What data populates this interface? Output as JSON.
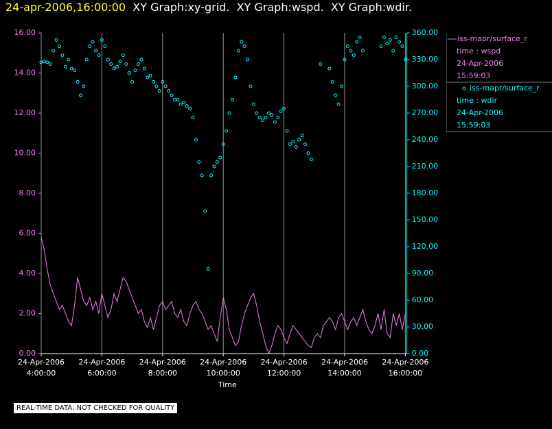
{
  "header": {
    "timestamp": "24-apr-2006,16:00:00",
    "title": "XY Graph:xy-grid.  XY Graph:wspd.  XY Graph:wdir."
  },
  "chart_data": {
    "type": "line",
    "xlabel": "Time",
    "grid": "x",
    "x": [
      4,
      4.1,
      4.2,
      4.3,
      4.4,
      4.5,
      4.6,
      4.7,
      4.8,
      4.9,
      5,
      5.1,
      5.2,
      5.3,
      5.4,
      5.5,
      5.6,
      5.7,
      5.8,
      5.9,
      6,
      6.1,
      6.2,
      6.3,
      6.4,
      6.5,
      6.6,
      6.7,
      6.8,
      6.9,
      7,
      7.1,
      7.2,
      7.3,
      7.4,
      7.5,
      7.6,
      7.7,
      7.8,
      7.9,
      8,
      8.1,
      8.2,
      8.3,
      8.4,
      8.5,
      8.6,
      8.7,
      8.8,
      8.9,
      9,
      9.1,
      9.2,
      9.3,
      9.4,
      9.5,
      9.6,
      9.7,
      9.8,
      9.9,
      10,
      10.1,
      10.2,
      10.3,
      10.4,
      10.5,
      10.6,
      10.7,
      10.8,
      10.9,
      11,
      11.1,
      11.2,
      11.3,
      11.4,
      11.5,
      11.6,
      11.7,
      11.8,
      11.9,
      12,
      12.1,
      12.2,
      12.3,
      12.4,
      12.5,
      12.6,
      12.7,
      12.8,
      12.9,
      13,
      13.1,
      13.2,
      13.3,
      13.4,
      13.5,
      13.6,
      13.7,
      13.8,
      13.9,
      14,
      14.1,
      14.2,
      14.3,
      14.4,
      14.5,
      14.6,
      14.7,
      14.8,
      14.9,
      15,
      15.1,
      15.2,
      15.3,
      15.4,
      15.5,
      15.6,
      15.7,
      15.8,
      15.9,
      16
    ],
    "xlim": [
      4,
      16.05
    ],
    "xticks": [
      {
        "value": 4,
        "label": "24-Apr-2006\n4:00:00"
      },
      {
        "value": 6,
        "label": "24-Apr-2006\n6:00:00"
      },
      {
        "value": 8,
        "label": "24-Apr-2006\n8:00:00"
      },
      {
        "value": 10,
        "label": "24-Apr-2006\n10:00:00"
      },
      {
        "value": 12,
        "label": "24-Apr-2006\n12:00:00"
      },
      {
        "value": 14,
        "label": "24-Apr-2006\n14:00:00"
      },
      {
        "value": 16,
        "label": "24-Apr-2006\n16:00:00"
      }
    ],
    "ylim": [
      0,
      16
    ],
    "yticks": [
      {
        "value": 0,
        "label": "0.00"
      },
      {
        "value": 2,
        "label": "2.00"
      },
      {
        "value": 4,
        "label": "4.00"
      },
      {
        "value": 6,
        "label": "6.00"
      },
      {
        "value": 8,
        "label": "8.00"
      },
      {
        "value": 10,
        "label": "10.00"
      },
      {
        "value": 12,
        "label": "12.00"
      },
      {
        "value": 14,
        "label": "14.00"
      },
      {
        "value": 16,
        "label": "16.00"
      }
    ],
    "y2lim": [
      0,
      360
    ],
    "y2ticks": [
      {
        "value": 0,
        "label": "0.00"
      },
      {
        "value": 30,
        "label": "30.00"
      },
      {
        "value": 60,
        "label": "60.00"
      },
      {
        "value": 90,
        "label": "90.00"
      },
      {
        "value": 120,
        "label": "120.00"
      },
      {
        "value": 150,
        "label": "150.00"
      },
      {
        "value": 180,
        "label": "180.00"
      },
      {
        "value": 210,
        "label": "210.00"
      },
      {
        "value": 240,
        "label": "240.00"
      },
      {
        "value": 270,
        "label": "270.00"
      },
      {
        "value": 300,
        "label": "300.00"
      },
      {
        "value": 330,
        "label": "330.00"
      },
      {
        "value": 360,
        "label": "360.00"
      }
    ],
    "series": [
      {
        "name": "iss-mapr/surface_r",
        "type": "line",
        "color": "#ee82ee",
        "legend_lines": [
          "time : wspd",
          "24-Apr-2006",
          "15:59:03"
        ],
        "values": [
          5.8,
          5.2,
          4.2,
          3.4,
          3.0,
          2.6,
          2.2,
          2.4,
          2.0,
          1.6,
          1.4,
          2.4,
          3.8,
          3.2,
          2.6,
          2.4,
          2.8,
          2.2,
          2.6,
          2.0,
          3.0,
          2.4,
          1.8,
          2.2,
          3.0,
          2.6,
          3.2,
          3.8,
          3.6,
          3.2,
          2.8,
          2.4,
          2.0,
          2.2,
          1.6,
          1.3,
          1.8,
          1.2,
          1.8,
          2.4,
          2.6,
          2.2,
          2.4,
          2.6,
          2.0,
          1.8,
          2.2,
          1.6,
          1.4,
          2.0,
          2.4,
          2.6,
          2.2,
          2.0,
          1.6,
          1.2,
          1.4,
          1.0,
          0.6,
          1.8,
          2.8,
          2.2,
          1.2,
          0.8,
          0.4,
          0.6,
          1.4,
          2.0,
          2.4,
          2.8,
          3.0,
          2.4,
          1.6,
          1.0,
          0.4,
          0.0,
          0.4,
          1.0,
          1.4,
          1.2,
          0.8,
          0.5,
          1.0,
          1.4,
          1.2,
          1.0,
          0.8,
          0.6,
          0.4,
          0.3,
          0.8,
          1.0,
          0.8,
          1.4,
          1.6,
          1.8,
          1.6,
          1.2,
          1.8,
          2.0,
          1.6,
          1.2,
          1.6,
          1.8,
          1.4,
          1.8,
          2.2,
          1.6,
          1.2,
          1.0,
          1.4,
          2.0,
          1.2,
          2.2,
          1.0,
          0.8,
          2.0,
          1.4,
          2.0,
          1.2,
          2.0
        ]
      },
      {
        "name": "iss-mapr/surface_r",
        "type": "scatter",
        "axis": "y2",
        "color": "#00ffff",
        "legend_lines": [
          "time : wdir",
          "24-Apr-2006",
          "15:59:03"
        ],
        "values": [
          327,
          328,
          327,
          325,
          340,
          352,
          345,
          335,
          322,
          330,
          320,
          318,
          305,
          290,
          300,
          330,
          345,
          350,
          340,
          335,
          352,
          345,
          330,
          325,
          320,
          322,
          328,
          335,
          325,
          315,
          305,
          318,
          325,
          330,
          320,
          310,
          312,
          305,
          300,
          295,
          305,
          300,
          295,
          290,
          285,
          285,
          280,
          282,
          278,
          275,
          265,
          240,
          215,
          200,
          160,
          95,
          200,
          210,
          215,
          220,
          235,
          250,
          270,
          285,
          310,
          340,
          350,
          345,
          330,
          300,
          280,
          270,
          265,
          262,
          265,
          270,
          268,
          260,
          265,
          272,
          275,
          250,
          235,
          238,
          232,
          240,
          245,
          235,
          225,
          218,
          null,
          null,
          325,
          null,
          null,
          320,
          305,
          290,
          280,
          300,
          330,
          345,
          340,
          335,
          350,
          355,
          340,
          null,
          null,
          null,
          null,
          null,
          345,
          355,
          348,
          352,
          340,
          355,
          350,
          345,
          330
        ]
      }
    ]
  },
  "footer": "REAL-TIME DATA, NOT CHECKED FOR QUALITY"
}
